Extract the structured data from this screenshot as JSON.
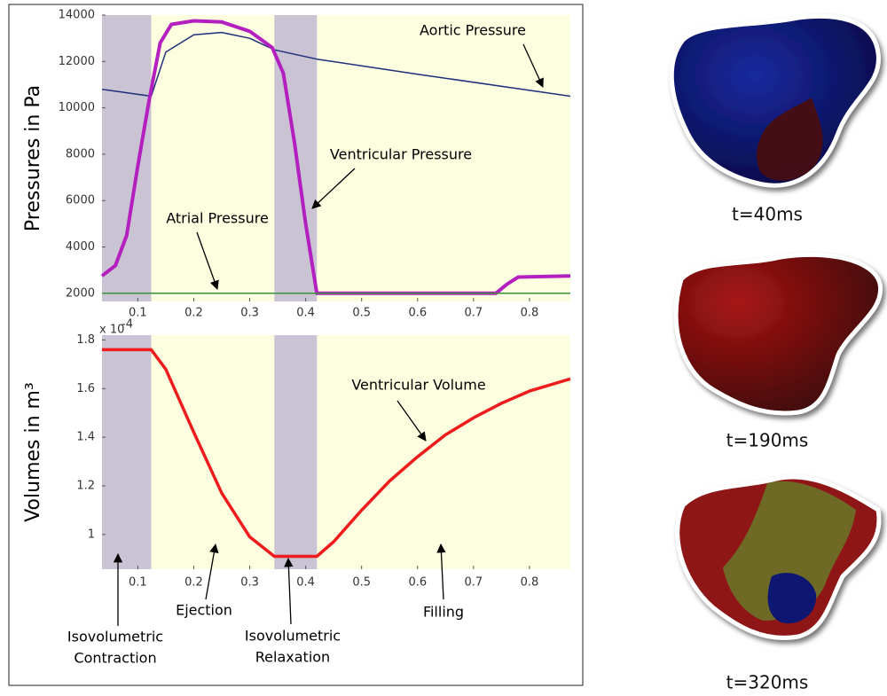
{
  "chart_data": [
    {
      "type": "line",
      "ylabel": "Pressures in Pa",
      "xlim": [
        0.036,
        0.873
      ],
      "ylim": [
        1650,
        14000
      ],
      "xticks": [
        0.1,
        0.2,
        0.3,
        0.4,
        0.5,
        0.6,
        0.7,
        0.8
      ],
      "yticks": [
        2000,
        4000,
        6000,
        8000,
        10000,
        12000,
        14000
      ],
      "plot_background": "#fdfde0",
      "shaded_regions": [
        {
          "from": 0.036,
          "to": 0.124,
          "color": "#c9c3d3"
        },
        {
          "from": 0.344,
          "to": 0.42,
          "color": "#c9c3d3"
        }
      ],
      "series": [
        {
          "name": "Aortic Pressure",
          "color": "#1f2f7a",
          "width": 1.5,
          "x": [
            0.036,
            0.08,
            0.124,
            0.15,
            0.2,
            0.25,
            0.3,
            0.344,
            0.42,
            0.6,
            0.873
          ],
          "values": [
            10800,
            10650,
            10500,
            12400,
            13150,
            13250,
            13000,
            12500,
            12100,
            11450,
            10500
          ]
        },
        {
          "name": "Ventricular Pressure",
          "color": "#b41fbf",
          "width": 4,
          "x": [
            0.036,
            0.06,
            0.08,
            0.1,
            0.12,
            0.14,
            0.16,
            0.2,
            0.25,
            0.3,
            0.34,
            0.36,
            0.38,
            0.4,
            0.42,
            0.43,
            0.74,
            0.76,
            0.78,
            0.873
          ],
          "values": [
            2750,
            3200,
            4500,
            7500,
            10300,
            12800,
            13600,
            13750,
            13700,
            13300,
            12600,
            11500,
            8500,
            5000,
            2000,
            2000,
            2000,
            2400,
            2700,
            2750
          ]
        },
        {
          "name": "Atrial Pressure",
          "color": "#3d8f3d",
          "width": 1.5,
          "x": [
            0.036,
            0.873
          ],
          "values": [
            2000,
            2000
          ]
        }
      ],
      "annotations": [
        {
          "lines": [
            "Aortic Pressure"
          ]
        },
        {
          "lines": [
            "Ventricular Pressure"
          ]
        },
        {
          "lines": [
            "Atrial Pressure"
          ]
        }
      ]
    },
    {
      "type": "line",
      "ylabel": "Volumes in m³",
      "y_multiplier": "x 10",
      "y_multiplier_exponent": "-4",
      "xlim": [
        0.036,
        0.873
      ],
      "ylim": [
        0.857,
        1.82
      ],
      "xticks": [
        0.1,
        0.2,
        0.3,
        0.4,
        0.5,
        0.6,
        0.7,
        0.8
      ],
      "yticks": [
        1,
        1.2,
        1.4,
        1.6,
        1.8
      ],
      "plot_background": "#fdfde0",
      "shaded_regions": [
        {
          "from": 0.036,
          "to": 0.124,
          "color": "#c9c3d3"
        },
        {
          "from": 0.344,
          "to": 0.42,
          "color": "#c9c3d3"
        }
      ],
      "series": [
        {
          "name": "Ventricular Volume",
          "color": "#ee1c1c",
          "width": 3.5,
          "x": [
            0.036,
            0.124,
            0.15,
            0.2,
            0.25,
            0.3,
            0.344,
            0.42,
            0.45,
            0.5,
            0.55,
            0.6,
            0.65,
            0.7,
            0.75,
            0.8,
            0.873
          ],
          "values": [
            1.76,
            1.76,
            1.68,
            1.42,
            1.17,
            0.99,
            0.91,
            0.91,
            0.97,
            1.1,
            1.22,
            1.32,
            1.41,
            1.48,
            1.54,
            1.59,
            1.64
          ]
        }
      ],
      "annotations": [
        {
          "lines": [
            "Ventricular Volume"
          ]
        },
        {
          "lines": [
            "Ejection"
          ]
        },
        {
          "lines": [
            "Filling"
          ]
        },
        {
          "lines": [
            "Isovolumetric",
            "Contraction"
          ]
        },
        {
          "lines": [
            "Isovolumetric",
            "Relaxation"
          ]
        }
      ]
    }
  ],
  "panels": [
    {
      "caption": "t=40ms"
    },
    {
      "caption": "t=190ms"
    },
    {
      "caption": "t=320ms"
    }
  ]
}
